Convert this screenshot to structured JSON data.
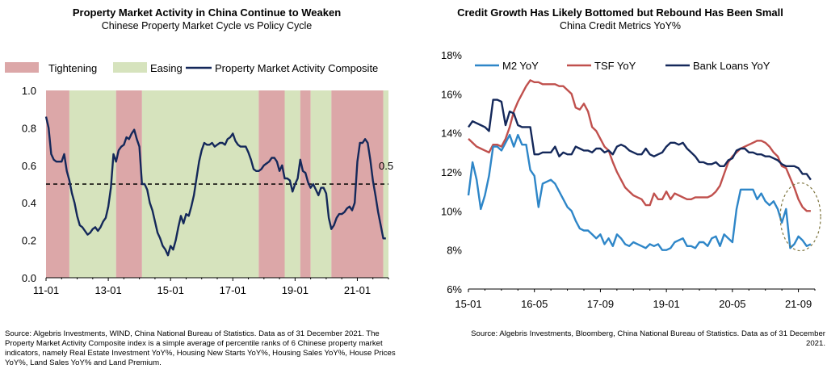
{
  "left_panel": {
    "title": "Property Market Activity in China Continue to Weaken",
    "subtitle": "Chinese Property Market Cycle vs Policy Cycle",
    "source": "Source: Algebris Investments, WIND, China National Bureau of Statistics. Data as of 31 December 2021. The Property Market Activity Composite index is a simple average of percentile ranks of 6 Chinese property market indicators, namely Real Estate Investment YoY%, Housing New Starts YoY%, Housing Sales YoY%, House Prices YoY%, Land Sales YoY% and Land Premium."
  },
  "right_panel": {
    "title": "Credit Growth Has Likely Bottomed but Rebound Has Been Small",
    "subtitle": "China Credit Metrics YoY%",
    "source": "Source: Algebris Investments, Bloomberg, China National Bureau of Statistics. Data as of 31 December 2021."
  },
  "colors": {
    "tightening": "#dca7a8",
    "easing": "#d6e3bd",
    "composite": "#14285a",
    "m2": "#2e86c8",
    "tsf": "#c0504d",
    "bank_loans": "#14285a",
    "threshold": "#000000",
    "highlight_ellipse": "#7f7640"
  },
  "chart_data": [
    {
      "type": "line",
      "x_tick_labels": [
        "11-01",
        "13-01",
        "15-01",
        "17-01",
        "19-01",
        "21-01"
      ],
      "x_tick_values": [
        0,
        24,
        48,
        72,
        96,
        120
      ],
      "xlim": [
        0,
        132
      ],
      "ylim": [
        0.0,
        1.0
      ],
      "y_tick_labels": [
        "0.0",
        "0.2",
        "0.4",
        "0.6",
        "0.8",
        "1.0"
      ],
      "y_tick_values": [
        0.0,
        0.2,
        0.4,
        0.6,
        0.8,
        1.0
      ],
      "legend_placement": "top",
      "regimes": [
        {
          "type": "Tightening",
          "start": 0,
          "end": 9
        },
        {
          "type": "Easing",
          "start": 9,
          "end": 27
        },
        {
          "type": "Tightening",
          "start": 27,
          "end": 37
        },
        {
          "type": "Easing",
          "start": 37,
          "end": 82
        },
        {
          "type": "Tightening",
          "start": 82,
          "end": 92
        },
        {
          "type": "Easing",
          "start": 92,
          "end": 98
        },
        {
          "type": "Tightening",
          "start": 98,
          "end": 102
        },
        {
          "type": "Easing",
          "start": 102,
          "end": 110
        },
        {
          "type": "Tightening",
          "start": 110,
          "end": 130
        },
        {
          "type": "Easing",
          "start": 130,
          "end": 132
        }
      ],
      "legend": {
        "tightening": "Tightening",
        "easing": "Easing",
        "composite": "Property Market Activity Composite"
      },
      "threshold": {
        "value": 0.5,
        "label": "0.5"
      },
      "series": [
        {
          "name": "Property Market Activity Composite",
          "x": [
            0,
            1,
            2,
            3,
            4,
            5,
            6,
            7,
            8,
            9,
            10,
            11,
            12,
            13,
            14,
            15,
            16,
            17,
            18,
            19,
            20,
            21,
            22,
            23,
            24,
            25,
            26,
            27,
            28,
            29,
            30,
            31,
            32,
            33,
            34,
            35,
            36,
            37,
            38,
            39,
            40,
            41,
            42,
            43,
            44,
            45,
            46,
            47,
            48,
            49,
            50,
            51,
            52,
            53,
            54,
            55,
            56,
            57,
            58,
            59,
            60,
            61,
            62,
            63,
            64,
            65,
            66,
            67,
            68,
            69,
            70,
            71,
            72,
            73,
            74,
            75,
            76,
            77,
            78,
            79,
            80,
            81,
            82,
            83,
            84,
            85,
            86,
            87,
            88,
            89,
            90,
            91,
            92,
            93,
            94,
            95,
            96,
            97,
            98,
            99,
            100,
            101,
            102,
            103,
            104,
            105,
            106,
            107,
            108,
            109,
            110,
            111,
            112,
            113,
            114,
            115,
            116,
            117,
            118,
            119,
            120,
            121,
            122,
            123,
            124,
            125,
            126,
            127,
            128,
            129,
            130,
            131
          ],
          "values": [
            0.86,
            0.8,
            0.66,
            0.63,
            0.62,
            0.62,
            0.62,
            0.66,
            0.57,
            0.52,
            0.45,
            0.4,
            0.33,
            0.28,
            0.27,
            0.25,
            0.23,
            0.24,
            0.26,
            0.27,
            0.25,
            0.27,
            0.3,
            0.32,
            0.38,
            0.48,
            0.66,
            0.62,
            0.68,
            0.7,
            0.71,
            0.75,
            0.74,
            0.77,
            0.79,
            0.74,
            0.7,
            0.5,
            0.5,
            0.47,
            0.4,
            0.36,
            0.3,
            0.24,
            0.21,
            0.17,
            0.15,
            0.12,
            0.17,
            0.15,
            0.2,
            0.27,
            0.33,
            0.29,
            0.34,
            0.33,
            0.38,
            0.44,
            0.53,
            0.62,
            0.68,
            0.72,
            0.71,
            0.71,
            0.72,
            0.7,
            0.71,
            0.72,
            0.72,
            0.71,
            0.74,
            0.75,
            0.77,
            0.73,
            0.71,
            0.7,
            0.7,
            0.7,
            0.67,
            0.63,
            0.58,
            0.57,
            0.57,
            0.58,
            0.6,
            0.61,
            0.62,
            0.64,
            0.64,
            0.62,
            0.57,
            0.6,
            0.53,
            0.53,
            0.52,
            0.46,
            0.5,
            0.53,
            0.63,
            0.57,
            0.56,
            0.51,
            0.48,
            0.5,
            0.47,
            0.44,
            0.48,
            0.48,
            0.45,
            0.32,
            0.26,
            0.28,
            0.32,
            0.34,
            0.34,
            0.35,
            0.37,
            0.38,
            0.36,
            0.4,
            0.62,
            0.72,
            0.72,
            0.74,
            0.72,
            0.63,
            0.52,
            0.44,
            0.35,
            0.28,
            0.21,
            0.21
          ]
        }
      ]
    },
    {
      "type": "line",
      "x_tick_labels": [
        "15-01",
        "16-05",
        "17-09",
        "19-01",
        "20-05",
        "21-09"
      ],
      "x_tick_values": [
        0,
        16,
        32,
        48,
        64,
        80
      ],
      "xlim": [
        0,
        84
      ],
      "ylim": [
        6,
        18
      ],
      "y_tick_labels": [
        "6%",
        "8%",
        "10%",
        "12%",
        "14%",
        "16%",
        "18%"
      ],
      "y_tick_values": [
        6,
        8,
        10,
        12,
        14,
        16,
        18
      ],
      "legend_placement": "top",
      "series": [
        {
          "name": "M2 YoY",
          "x": [
            0,
            1,
            2,
            3,
            4,
            5,
            6,
            7,
            8,
            9,
            10,
            11,
            12,
            13,
            14,
            15,
            16,
            17,
            18,
            19,
            20,
            21,
            22,
            23,
            24,
            25,
            26,
            27,
            28,
            29,
            30,
            31,
            32,
            33,
            34,
            35,
            36,
            37,
            38,
            39,
            40,
            41,
            42,
            43,
            44,
            45,
            46,
            47,
            48,
            49,
            50,
            51,
            52,
            53,
            54,
            55,
            56,
            57,
            58,
            59,
            60,
            61,
            62,
            63,
            64,
            65,
            66,
            67,
            68,
            69,
            70,
            71,
            72,
            73,
            74,
            75,
            76,
            77,
            78,
            79,
            80,
            81,
            82,
            83
          ],
          "values": [
            10.8,
            12.5,
            11.6,
            10.1,
            10.8,
            11.8,
            13.3,
            13.3,
            13.1,
            13.5,
            13.9,
            13.3,
            13.9,
            13.4,
            13.4,
            12.1,
            11.8,
            10.2,
            11.4,
            11.5,
            11.6,
            11.4,
            11.0,
            10.6,
            10.2,
            10.0,
            9.5,
            9.1,
            9.0,
            9.0,
            8.8,
            8.6,
            8.8,
            8.3,
            8.6,
            8.2,
            8.8,
            8.6,
            8.3,
            8.2,
            8.4,
            8.3,
            8.2,
            8.1,
            8.3,
            8.2,
            8.3,
            8.0,
            8.0,
            8.1,
            8.4,
            8.5,
            8.6,
            8.2,
            8.2,
            8.1,
            8.4,
            8.4,
            8.2,
            8.6,
            8.7,
            8.2,
            8.8,
            8.6,
            8.4,
            10.1,
            11.1,
            11.1,
            11.1,
            11.1,
            10.6,
            10.9,
            10.5,
            10.3,
            10.5,
            10.1,
            9.4,
            10.1,
            8.1,
            8.3,
            8.7,
            8.5,
            8.2,
            8.3
          ]
        },
        {
          "name": "TSF YoY",
          "x": [
            0,
            1,
            2,
            3,
            4,
            5,
            6,
            7,
            8,
            9,
            10,
            11,
            12,
            13,
            14,
            15,
            16,
            17,
            18,
            19,
            20,
            21,
            22,
            23,
            24,
            25,
            26,
            27,
            28,
            29,
            30,
            31,
            32,
            33,
            34,
            35,
            36,
            37,
            38,
            39,
            40,
            41,
            42,
            43,
            44,
            45,
            46,
            47,
            48,
            49,
            50,
            51,
            52,
            53,
            54,
            55,
            56,
            57,
            58,
            59,
            60,
            61,
            62,
            63,
            64,
            65,
            66,
            67,
            68,
            69,
            70,
            71,
            72,
            73,
            74,
            75,
            76,
            77,
            78,
            79,
            80,
            81,
            82,
            83
          ],
          "values": [
            13.7,
            13.5,
            13.3,
            13.2,
            13.1,
            13.0,
            13.4,
            13.4,
            13.3,
            13.7,
            14.3,
            15.1,
            15.6,
            16.0,
            16.4,
            16.7,
            16.6,
            16.6,
            16.5,
            16.5,
            16.5,
            16.5,
            16.4,
            16.4,
            16.2,
            16.0,
            15.3,
            15.2,
            15.5,
            15.1,
            14.3,
            14.1,
            13.7,
            13.3,
            13.1,
            12.5,
            12.0,
            11.6,
            11.2,
            11.0,
            10.8,
            10.7,
            10.6,
            10.3,
            10.3,
            10.9,
            10.6,
            10.6,
            11.0,
            10.6,
            10.9,
            10.8,
            10.7,
            10.6,
            10.6,
            10.7,
            10.7,
            10.7,
            10.7,
            10.8,
            11.0,
            11.3,
            11.9,
            12.5,
            12.8,
            13.0,
            13.2,
            13.3,
            13.4,
            13.5,
            13.6,
            13.6,
            13.5,
            13.3,
            13.0,
            12.8,
            12.3,
            12.2,
            11.7,
            11.2,
            10.6,
            10.2,
            10.0,
            10.0
          ]
        },
        {
          "name": "Bank Loans YoY",
          "x": [
            0,
            1,
            2,
            3,
            4,
            5,
            6,
            7,
            8,
            9,
            10,
            11,
            12,
            13,
            14,
            15,
            16,
            17,
            18,
            19,
            20,
            21,
            22,
            23,
            24,
            25,
            26,
            27,
            28,
            29,
            30,
            31,
            32,
            33,
            34,
            35,
            36,
            37,
            38,
            39,
            40,
            41,
            42,
            43,
            44,
            45,
            46,
            47,
            48,
            49,
            50,
            51,
            52,
            53,
            54,
            55,
            56,
            57,
            58,
            59,
            60,
            61,
            62,
            63,
            64,
            65,
            66,
            67,
            68,
            69,
            70,
            71,
            72,
            73,
            74,
            75,
            76,
            77,
            78,
            79,
            80,
            81,
            82,
            83
          ],
          "values": [
            14.3,
            14.6,
            14.5,
            14.4,
            14.3,
            14.1,
            15.7,
            15.7,
            15.6,
            14.4,
            15.1,
            15.0,
            14.4,
            14.3,
            14.3,
            14.3,
            12.9,
            12.9,
            13.0,
            13.0,
            13.0,
            13.3,
            12.8,
            13.0,
            12.9,
            12.9,
            13.3,
            13.2,
            13.1,
            13.1,
            13.0,
            13.2,
            13.2,
            13.0,
            13.1,
            12.9,
            13.3,
            13.4,
            13.3,
            13.1,
            13.0,
            12.9,
            12.9,
            13.2,
            12.9,
            12.8,
            12.9,
            13.0,
            13.3,
            13.5,
            13.5,
            13.4,
            13.5,
            13.2,
            13.0,
            12.8,
            12.5,
            12.5,
            12.4,
            12.4,
            12.5,
            12.3,
            12.3,
            12.6,
            12.7,
            13.1,
            13.2,
            13.2,
            13.0,
            13.0,
            12.9,
            12.9,
            12.8,
            12.8,
            12.7,
            12.6,
            12.4,
            12.3,
            12.3,
            12.3,
            12.2,
            11.9,
            11.9,
            11.6
          ]
        }
      ],
      "highlight": {
        "shape": "ellipse",
        "style": "dashed",
        "x_center": 80.5,
        "y_center": 9.7
      }
    }
  ]
}
